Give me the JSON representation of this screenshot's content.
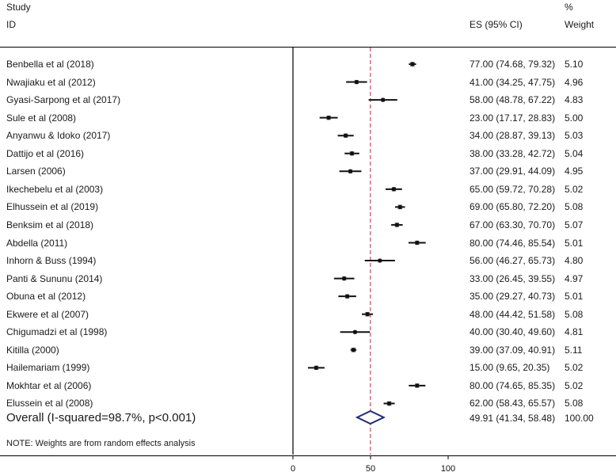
{
  "header": {
    "study_line1": "Study",
    "study_line2": "ID",
    "es_label": "ES (95% CI)",
    "weight_line1": "%",
    "weight_line2": "Weight"
  },
  "chart_data": {
    "type": "forest",
    "xlim": [
      0,
      100
    ],
    "xticks": [
      "0",
      "50",
      "100"
    ],
    "null_line": 0,
    "overall_line": 49.91,
    "studies": [
      {
        "label": "Benbella et al  (2018)",
        "es": 77.0,
        "lo": 74.68,
        "hi": 79.32,
        "ci_text": "77.00 (74.68, 79.32)",
        "weight": "5.10"
      },
      {
        "label": "Nwajiaku et al  (2012)",
        "es": 41.0,
        "lo": 34.25,
        "hi": 47.75,
        "ci_text": "41.00 (34.25, 47.75)",
        "weight": "4.96"
      },
      {
        "label": "Gyasi-Sarpong et al (2017)",
        "es": 58.0,
        "lo": 48.78,
        "hi": 67.22,
        "ci_text": "58.00 (48.78, 67.22)",
        "weight": "4.83"
      },
      {
        "label": "Sule et al (2008)",
        "es": 23.0,
        "lo": 17.17,
        "hi": 28.83,
        "ci_text": "23.00 (17.17, 28.83)",
        "weight": "5.00"
      },
      {
        "label": "Anyanwu & Idoko (2017)",
        "es": 34.0,
        "lo": 28.87,
        "hi": 39.13,
        "ci_text": "34.00 (28.87, 39.13)",
        "weight": "5.03"
      },
      {
        "label": "Dattijo et al (2016)",
        "es": 38.0,
        "lo": 33.28,
        "hi": 42.72,
        "ci_text": "38.00 (33.28, 42.72)",
        "weight": "5.04"
      },
      {
        "label": "Larsen (2006)",
        "es": 37.0,
        "lo": 29.91,
        "hi": 44.09,
        "ci_text": "37.00 (29.91, 44.09)",
        "weight": "4.95"
      },
      {
        "label": "Ikechebelu et al (2003)",
        "es": 65.0,
        "lo": 59.72,
        "hi": 70.28,
        "ci_text": "65.00 (59.72, 70.28)",
        "weight": "5.02"
      },
      {
        "label": "Elhussein et al (2019)",
        "es": 69.0,
        "lo": 65.8,
        "hi": 72.2,
        "ci_text": "69.00 (65.80, 72.20)",
        "weight": "5.08"
      },
      {
        "label": "Benksim et al (2018)",
        "es": 67.0,
        "lo": 63.3,
        "hi": 70.7,
        "ci_text": "67.00 (63.30, 70.70)",
        "weight": "5.07"
      },
      {
        "label": "Abdella  (2011)",
        "es": 80.0,
        "lo": 74.46,
        "hi": 85.54,
        "ci_text": "80.00 (74.46, 85.54)",
        "weight": "5.01"
      },
      {
        "label": "Inhorn & Buss (1994)",
        "es": 56.0,
        "lo": 46.27,
        "hi": 65.73,
        "ci_text": "56.00 (46.27, 65.73)",
        "weight": "4.80"
      },
      {
        "label": "Panti & Sununu (2014)",
        "es": 33.0,
        "lo": 26.45,
        "hi": 39.55,
        "ci_text": "33.00 (26.45, 39.55)",
        "weight": "4.97"
      },
      {
        "label": "Obuna et al (2012)",
        "es": 35.0,
        "lo": 29.27,
        "hi": 40.73,
        "ci_text": "35.00 (29.27, 40.73)",
        "weight": "5.01"
      },
      {
        "label": "Ekwere et al (2007)",
        "es": 48.0,
        "lo": 44.42,
        "hi": 51.58,
        "ci_text": "48.00 (44.42, 51.58)",
        "weight": "5.08"
      },
      {
        "label": "Chigumadzi et al (1998)",
        "es": 40.0,
        "lo": 30.4,
        "hi": 49.6,
        "ci_text": "40.00 (30.40, 49.60)",
        "weight": "4.81"
      },
      {
        "label": "Kitilla  (2000)",
        "es": 39.0,
        "lo": 37.09,
        "hi": 40.91,
        "ci_text": "39.00 (37.09, 40.91)",
        "weight": "5.11"
      },
      {
        "label": "Hailemariam (1999)",
        "es": 15.0,
        "lo": 9.65,
        "hi": 20.35,
        "ci_text": "15.00 (9.65, 20.35)",
        "weight": "5.02"
      },
      {
        "label": "Mokhtar et al (2006)",
        "es": 80.0,
        "lo": 74.65,
        "hi": 85.35,
        "ci_text": "80.00 (74.65, 85.35)",
        "weight": "5.02"
      },
      {
        "label": "Elussein et al (2008)",
        "es": 62.0,
        "lo": 58.43,
        "hi": 65.57,
        "ci_text": "62.00 (58.43, 65.57)",
        "weight": "5.08"
      }
    ],
    "overall": {
      "label": "Overall  (I-squared=98.7%, p<0.001)",
      "es": 49.91,
      "lo": 41.34,
      "hi": 58.48,
      "ci_text": "49.91 (41.34, 58.48)",
      "weight": "100.00"
    },
    "note": "NOTE: Weights are from random effects analysis",
    "colors": {
      "diamond": "#1f2a7a",
      "overall_line": "#b03040",
      "marker": "#111111",
      "axis": "#000000"
    }
  }
}
